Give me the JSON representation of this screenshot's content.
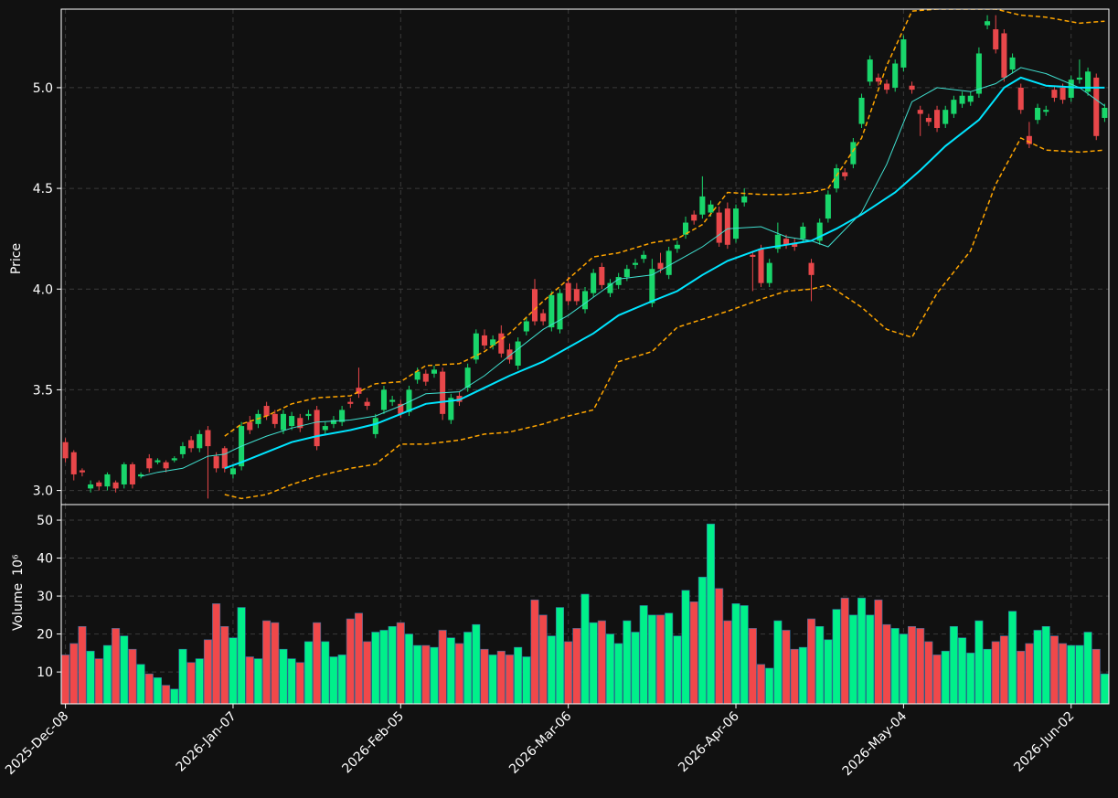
{
  "chart_data": [
    {
      "type": "candlestick",
      "ylabel": "Price",
      "ylim": [
        2.93,
        5.39
      ],
      "yticks": [
        {
          "value": 3,
          "label": "3.0"
        },
        3.5,
        {
          "value": 4,
          "label": "4.0"
        },
        4.5,
        {
          "value": 5,
          "label": "5.0"
        }
      ],
      "grid": true,
      "up_color": "#19d66b",
      "down_color": "#e8474a",
      "open": [
        3.24,
        3.19,
        3.1,
        3.01,
        3.04,
        3.02,
        3.04,
        3.03,
        3.13,
        3.07,
        3.16,
        3.14,
        3.14,
        3.15,
        3.18,
        3.25,
        3.21,
        3.3,
        3.17,
        3.21,
        3.08,
        3.12,
        3.34,
        3.33,
        3.42,
        3.38,
        3.3,
        3.32,
        3.36,
        3.37,
        3.4,
        3.3,
        3.33,
        3.34,
        3.44,
        3.51,
        3.44,
        3.28,
        3.4,
        3.44,
        3.43,
        3.39,
        3.55,
        3.58,
        3.58,
        3.59,
        3.35,
        3.47,
        3.51,
        3.65,
        3.77,
        3.72,
        3.78,
        3.7,
        3.62,
        3.79,
        4.0,
        3.88,
        3.81,
        3.8,
        4.03,
        4.0,
        3.9,
        3.98,
        4.11,
        3.98,
        4.02,
        4.06,
        4.12,
        4.15,
        3.93,
        4.13,
        4.07,
        4.2,
        4.27,
        4.37,
        4.37,
        4.38,
        4.38,
        4.4,
        4.25,
        4.43,
        4.17,
        4.2,
        4.03,
        4.2,
        4.25,
        4.23,
        4.25,
        4.13,
        4.24,
        4.35,
        4.5,
        4.58,
        4.62,
        4.82,
        5.03,
        5.05,
        5.02,
        5.0,
        5.1,
        5.01,
        4.89,
        4.85,
        4.89,
        4.82,
        4.87,
        4.92,
        4.93,
        4.97,
        5.31,
        5.29,
        5.27,
        5.09,
        5.0,
        4.76,
        4.84,
        4.88,
        4.99,
        5.0,
        4.95,
        5.04,
        4.98,
        5.05,
        4.85
      ],
      "high": [
        3.26,
        3.2,
        3.11,
        3.05,
        3.05,
        3.09,
        3.05,
        3.14,
        3.14,
        3.09,
        3.18,
        3.16,
        3.15,
        3.17,
        3.24,
        3.27,
        3.3,
        3.32,
        3.19,
        3.22,
        3.13,
        3.34,
        3.37,
        3.4,
        3.44,
        3.4,
        3.4,
        3.39,
        3.38,
        3.4,
        3.42,
        3.34,
        3.37,
        3.42,
        3.46,
        3.61,
        3.46,
        3.38,
        3.52,
        3.47,
        3.45,
        3.52,
        3.61,
        3.6,
        3.62,
        3.61,
        3.48,
        3.49,
        3.63,
        3.8,
        3.8,
        3.77,
        3.82,
        3.73,
        3.76,
        3.86,
        4.05,
        3.9,
        3.99,
        4.0,
        4.06,
        4.03,
        4.01,
        4.1,
        4.13,
        4.05,
        4.08,
        4.12,
        4.15,
        4.19,
        4.15,
        4.18,
        4.21,
        4.24,
        4.36,
        4.39,
        4.56,
        4.44,
        4.41,
        4.43,
        4.42,
        4.5,
        4.19,
        4.22,
        4.15,
        4.33,
        4.27,
        4.25,
        4.33,
        4.15,
        4.35,
        4.49,
        4.62,
        4.6,
        4.75,
        4.97,
        5.16,
        5.07,
        5.04,
        5.14,
        5.26,
        5.03,
        4.91,
        4.87,
        4.91,
        4.91,
        4.96,
        4.98,
        4.98,
        5.2,
        5.36,
        5.36,
        5.29,
        5.17,
        5.02,
        4.83,
        4.92,
        4.91,
        5.01,
        5.02,
        5.06,
        5.14,
        5.1,
        5.07,
        4.92
      ],
      "low": [
        3.14,
        3.05,
        3.07,
        2.99,
        3.0,
        3.0,
        2.99,
        3.01,
        3.01,
        3.06,
        3.09,
        3.13,
        3.09,
        3.14,
        3.16,
        3.19,
        3.19,
        2.96,
        3.09,
        3.09,
        3.06,
        3.1,
        3.28,
        3.31,
        3.35,
        3.31,
        3.28,
        3.3,
        3.29,
        3.35,
        3.2,
        3.28,
        3.31,
        3.32,
        3.41,
        3.46,
        3.4,
        3.26,
        3.38,
        3.42,
        3.36,
        3.37,
        3.53,
        3.52,
        3.56,
        3.35,
        3.33,
        3.42,
        3.49,
        3.63,
        3.7,
        3.7,
        3.66,
        3.63,
        3.6,
        3.77,
        3.82,
        3.82,
        3.79,
        3.78,
        3.92,
        3.92,
        3.88,
        3.96,
        4.0,
        3.96,
        4.0,
        4.04,
        4.1,
        4.13,
        3.91,
        4.08,
        4.05,
        4.18,
        4.25,
        4.32,
        4.35,
        4.36,
        4.21,
        4.2,
        4.23,
        4.41,
        3.99,
        4.01,
        4.01,
        4.18,
        4.2,
        4.19,
        4.23,
        3.94,
        4.22,
        4.33,
        4.48,
        4.54,
        4.6,
        4.8,
        5.01,
        5.01,
        4.97,
        4.98,
        5.08,
        4.97,
        4.76,
        4.81,
        4.78,
        4.8,
        4.85,
        4.9,
        4.91,
        4.95,
        5.29,
        5.17,
        5.03,
        5.07,
        4.87,
        4.7,
        4.82,
        4.86,
        4.93,
        4.92,
        4.93,
        5.02,
        4.96,
        4.74,
        4.83
      ],
      "close": [
        3.16,
        3.08,
        3.09,
        3.03,
        3.02,
        3.08,
        3.01,
        3.13,
        3.03,
        3.08,
        3.11,
        3.15,
        3.11,
        3.16,
        3.22,
        3.21,
        3.28,
        3.22,
        3.11,
        3.11,
        3.11,
        3.32,
        3.3,
        3.38,
        3.37,
        3.33,
        3.38,
        3.37,
        3.31,
        3.38,
        3.22,
        3.32,
        3.35,
        3.4,
        3.43,
        3.48,
        3.42,
        3.36,
        3.5,
        3.45,
        3.38,
        3.5,
        3.59,
        3.54,
        3.6,
        3.38,
        3.46,
        3.44,
        3.61,
        3.78,
        3.72,
        3.75,
        3.68,
        3.65,
        3.74,
        3.84,
        3.84,
        3.84,
        3.97,
        3.98,
        3.94,
        3.94,
        3.99,
        4.08,
        4.02,
        4.03,
        4.06,
        4.1,
        4.13,
        4.17,
        4.1,
        4.1,
        4.19,
        4.22,
        4.33,
        4.34,
        4.46,
        4.42,
        4.23,
        4.22,
        4.4,
        4.46,
        4.16,
        4.03,
        4.13,
        4.27,
        4.22,
        4.21,
        4.31,
        4.07,
        4.33,
        4.47,
        4.6,
        4.56,
        4.73,
        4.95,
        5.14,
        5.03,
        4.99,
        5.12,
        5.24,
        4.99,
        4.87,
        4.83,
        4.8,
        4.89,
        4.94,
        4.96,
        4.96,
        5.17,
        5.33,
        5.19,
        5.05,
        5.15,
        4.89,
        4.72,
        4.9,
        4.89,
        4.95,
        4.94,
        5.04,
        5.05,
        5.08,
        4.76,
        4.9
      ],
      "lines": [
        {
          "color": "#40e0d0",
          "width": 1,
          "style": "solid",
          "x": [
            9,
            11,
            14,
            17,
            19,
            21,
            24,
            27,
            30,
            34,
            37,
            40,
            43,
            47,
            50,
            53,
            57,
            60,
            63,
            66,
            70,
            73,
            76,
            79,
            83,
            86,
            89,
            91,
            95,
            98,
            101,
            104,
            108,
            111,
            114,
            117,
            121,
            124
          ],
          "values": [
            3.07,
            3.09,
            3.11,
            3.17,
            3.18,
            3.22,
            3.27,
            3.31,
            3.34,
            3.35,
            3.37,
            3.42,
            3.48,
            3.49,
            3.57,
            3.67,
            3.8,
            3.87,
            3.96,
            4.05,
            4.07,
            4.14,
            4.21,
            4.3,
            4.31,
            4.26,
            4.24,
            4.21,
            4.38,
            4.62,
            4.93,
            5.0,
            4.98,
            5.02,
            5.1,
            5.07,
            5.0,
            4.91
          ]
        },
        {
          "color": "#00e5ff",
          "width": 2,
          "style": "solid",
          "x": [
            19,
            21,
            24,
            27,
            30,
            34,
            37,
            40,
            43,
            47,
            50,
            53,
            57,
            60,
            63,
            66,
            70,
            73,
            76,
            79,
            83,
            86,
            89,
            92,
            95,
            99,
            102,
            105,
            109,
            112,
            114,
            117,
            121,
            124
          ],
          "values": [
            3.11,
            3.14,
            3.19,
            3.24,
            3.27,
            3.3,
            3.33,
            3.38,
            3.43,
            3.45,
            3.51,
            3.57,
            3.64,
            3.71,
            3.78,
            3.87,
            3.94,
            3.99,
            4.07,
            4.14,
            4.2,
            4.22,
            4.24,
            4.3,
            4.37,
            4.48,
            4.59,
            4.71,
            4.84,
            5.0,
            5.05,
            5.01,
            5.0,
            5.0
          ]
        },
        {
          "color": "#ffa500",
          "width": 1.5,
          "style": "dashed",
          "x": [
            19,
            21,
            24,
            27,
            30,
            34,
            37,
            40,
            43,
            47,
            50,
            53,
            57,
            60,
            63,
            66,
            70,
            73,
            76,
            79,
            83,
            86,
            89,
            91,
            95,
            98,
            101,
            104,
            108,
            111,
            114,
            117,
            121,
            124
          ],
          "values": [
            3.27,
            3.33,
            3.37,
            3.43,
            3.46,
            3.47,
            3.53,
            3.54,
            3.62,
            3.63,
            3.69,
            3.78,
            3.94,
            4.05,
            4.16,
            4.18,
            4.23,
            4.25,
            4.32,
            4.48,
            4.47,
            4.47,
            4.48,
            4.5,
            4.75,
            5.11,
            5.38,
            5.39,
            5.39,
            5.39,
            5.36,
            5.35,
            5.32,
            5.33
          ]
        },
        {
          "color": "#ffa500",
          "width": 1.5,
          "style": "dashed",
          "x": [
            19,
            21,
            24,
            27,
            30,
            34,
            37,
            40,
            43,
            47,
            50,
            53,
            57,
            60,
            63,
            66,
            70,
            73,
            76,
            79,
            83,
            86,
            89,
            91,
            95,
            98,
            101,
            104,
            108,
            111,
            114,
            117,
            121,
            124
          ],
          "values": [
            2.98,
            2.96,
            2.98,
            3.03,
            3.07,
            3.11,
            3.13,
            3.23,
            3.23,
            3.25,
            3.28,
            3.29,
            3.33,
            3.37,
            3.4,
            3.64,
            3.69,
            3.81,
            3.85,
            3.89,
            3.95,
            3.99,
            4.0,
            4.02,
            3.91,
            3.8,
            3.76,
            3.98,
            4.19,
            4.52,
            4.75,
            4.69,
            4.68,
            4.69
          ]
        }
      ]
    },
    {
      "type": "bar",
      "ylabel": "Volume",
      "ylabel_offset": "10⁶",
      "ylim": [
        1.6,
        54.1
      ],
      "yticks": [
        10,
        20,
        30,
        40,
        50
      ],
      "grid": true,
      "up_color": "#00f08a",
      "down_color": "#f0484a",
      "categories": [
        "2025-Dec-08",
        null,
        null,
        null,
        null,
        null,
        null,
        null,
        null,
        null,
        null,
        null,
        null,
        null,
        null,
        null,
        null,
        null,
        null,
        null,
        "2026-Jan-07",
        null,
        null,
        null,
        null,
        null,
        null,
        null,
        null,
        null,
        null,
        null,
        null,
        null,
        null,
        null,
        null,
        null,
        null,
        null,
        "2026-Feb-05",
        null,
        null,
        null,
        null,
        null,
        null,
        null,
        null,
        null,
        null,
        null,
        null,
        null,
        null,
        null,
        null,
        null,
        null,
        null,
        "2026-Mar-06",
        null,
        null,
        null,
        null,
        null,
        null,
        null,
        null,
        null,
        null,
        null,
        null,
        null,
        null,
        null,
        null,
        null,
        null,
        null,
        "2026-Apr-06",
        null,
        null,
        null,
        null,
        null,
        null,
        null,
        null,
        null,
        null,
        null,
        null,
        null,
        null,
        null,
        null,
        null,
        null,
        null,
        "2026-May-04",
        null,
        null,
        null,
        null,
        null,
        null,
        null,
        null,
        null,
        null,
        null,
        null,
        null,
        null,
        null,
        null,
        null,
        null,
        null,
        "2026-Jun-02",
        null,
        null,
        null,
        null
      ],
      "values": [
        14.5,
        17.5,
        22,
        15.5,
        13.5,
        17,
        21.5,
        19.5,
        16,
        12,
        9.5,
        8.5,
        6.5,
        5.5,
        16,
        12.5,
        13.5,
        18.5,
        28,
        22,
        19,
        27,
        14,
        13.5,
        23.5,
        23,
        16,
        13.5,
        12.5,
        18,
        23,
        18,
        14,
        14.5,
        24,
        25.5,
        18,
        20.5,
        21,
        22,
        23,
        20,
        17,
        17,
        16.5,
        21,
        19,
        17.5,
        20.5,
        22.5,
        16,
        14.5,
        15.5,
        14.5,
        16.5,
        14,
        29,
        25,
        19.5,
        27,
        18,
        21.5,
        30.5,
        23,
        23.5,
        20,
        17.5,
        23.5,
        20.5,
        27.5,
        25,
        25,
        25.5,
        19.5,
        31.5,
        28.5,
        35,
        49,
        32,
        23.5,
        28,
        27.5,
        21.5,
        12,
        11,
        23.5,
        21,
        16,
        16.5,
        24,
        22,
        18.5,
        26.5,
        29.5,
        25,
        29.5,
        25,
        29,
        22.5,
        21.5,
        20,
        22,
        21.5,
        18,
        14.5,
        15.5,
        22,
        19,
        15,
        23.5,
        16,
        18,
        19.5,
        26,
        15.5,
        17.5,
        21,
        22,
        19.5,
        17.5,
        17,
        17,
        20.5,
        16,
        9.5
      ]
    }
  ]
}
